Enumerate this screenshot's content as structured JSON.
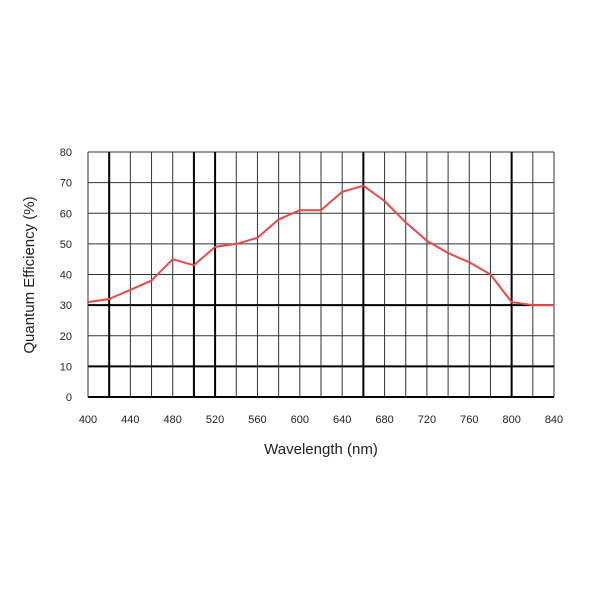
{
  "chart_data": {
    "type": "line",
    "title": "",
    "xlabel": "Wavelength (nm)",
    "ylabel": "Quantum Efficiency (%)",
    "xlim": [
      400,
      840
    ],
    "ylim": [
      0,
      80
    ],
    "x_ticks": [
      400,
      440,
      480,
      520,
      560,
      600,
      640,
      680,
      720,
      760,
      800,
      840
    ],
    "y_ticks": [
      0,
      10,
      20,
      30,
      40,
      50,
      60,
      70,
      80
    ],
    "grid": true,
    "legend": "none",
    "series": [
      {
        "color": "#e8494a",
        "x": [
          400,
          420,
          440,
          460,
          480,
          500,
          520,
          540,
          560,
          580,
          600,
          620,
          640,
          660,
          680,
          700,
          720,
          740,
          760,
          780,
          800,
          820,
          840
        ],
        "y": [
          31,
          32,
          35,
          38,
          45,
          43,
          49,
          50,
          52,
          58,
          61,
          61,
          67,
          69,
          64,
          57,
          51,
          47,
          44,
          40,
          31,
          30,
          30
        ]
      }
    ]
  }
}
